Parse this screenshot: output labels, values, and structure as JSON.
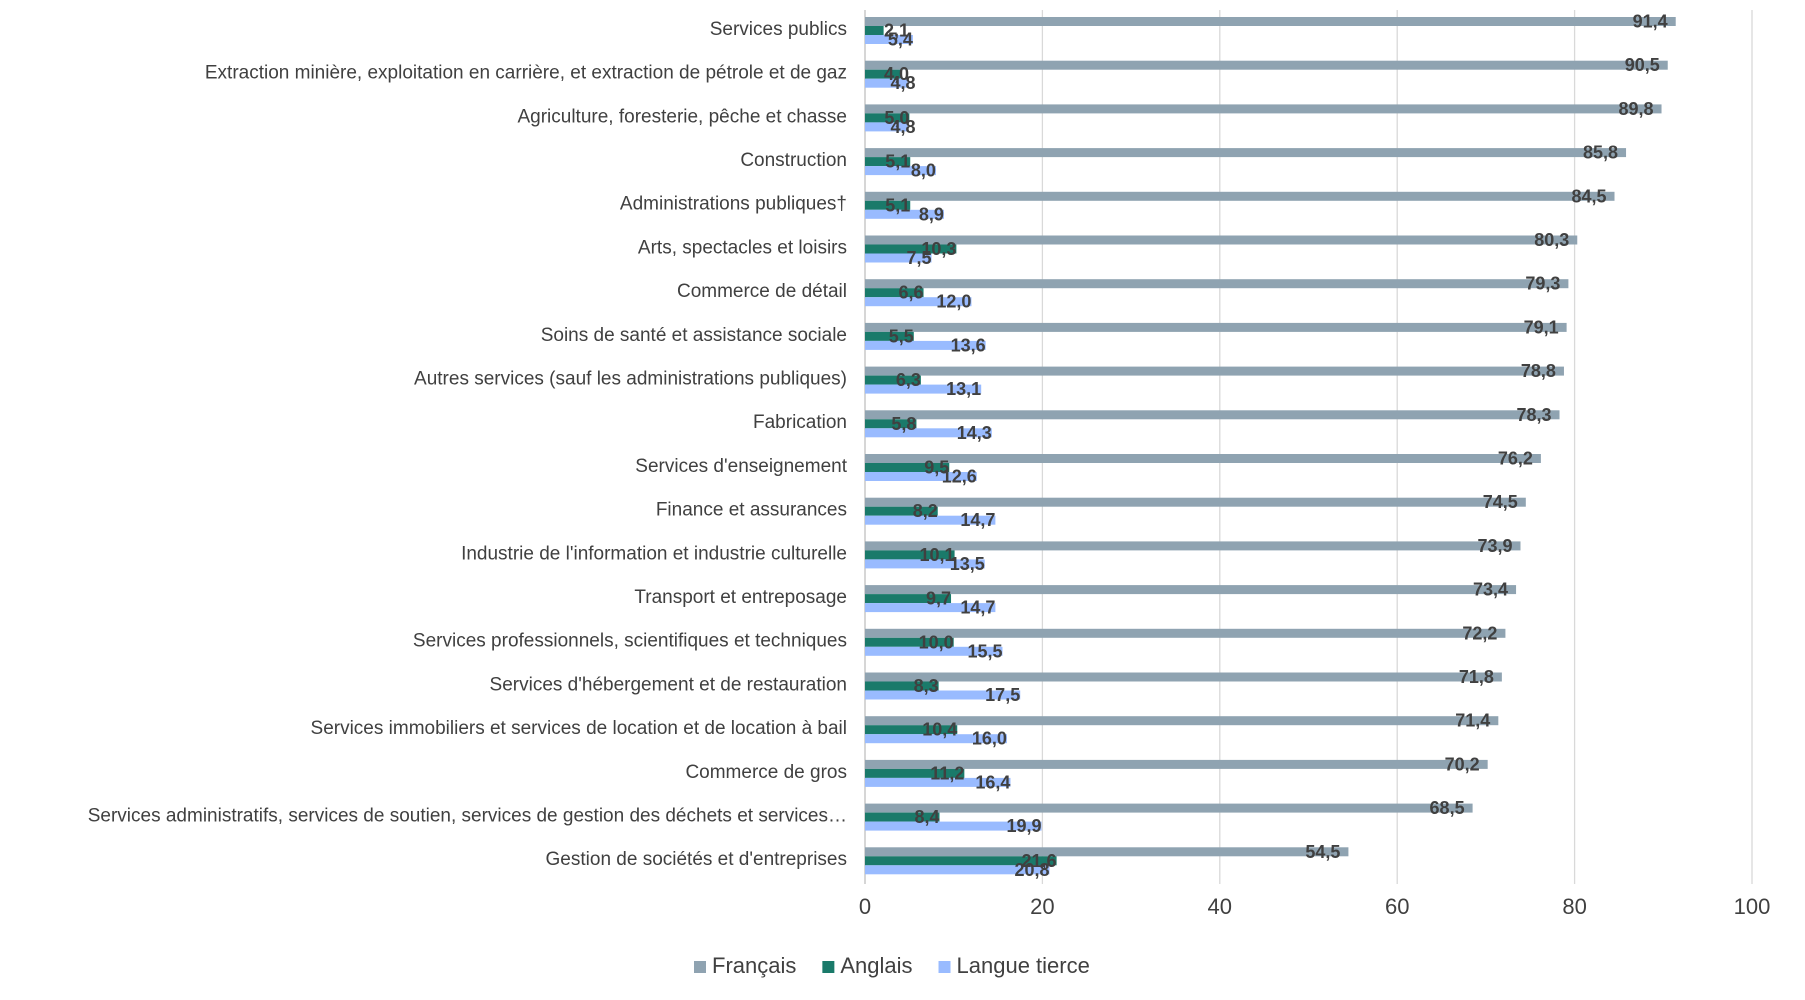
{
  "chart_data": {
    "type": "bar",
    "orientation": "horizontal",
    "categories": [
      "Services publics",
      "Extraction minière, exploitation en carrière, et extraction de pétrole et de gaz",
      "Agriculture, foresterie, pêche et chasse",
      "Construction",
      "Administrations publiques†",
      "Arts, spectacles et loisirs",
      "Commerce de détail",
      "Soins de santé et assistance sociale",
      "Autres services (sauf les administrations publiques)",
      "Fabrication",
      "Services d'enseignement",
      "Finance et assurances",
      "Industrie de l'information et industrie culturelle",
      "Transport et entreposage",
      "Services professionnels, scientifiques et techniques",
      "Services d'hébergement et de restauration",
      "Services immobiliers et services de location et de location à bail",
      "Commerce de gros",
      "Services administratifs, services de soutien, services de gestion des déchets et services…",
      "Gestion de sociétés et d'entreprises"
    ],
    "series": [
      {
        "name": "Français",
        "color": "#8fa3b1",
        "values": [
          91.4,
          90.5,
          89.8,
          85.8,
          84.5,
          80.3,
          79.3,
          79.1,
          78.8,
          78.3,
          76.2,
          74.5,
          73.9,
          73.4,
          72.2,
          71.8,
          71.4,
          70.2,
          68.5,
          54.5
        ],
        "labels": [
          "91,4",
          "90,5",
          "89,8",
          "85,8",
          "84,5",
          "80,3",
          "79,3",
          "79,1",
          "78,8",
          "78,3",
          "76,2",
          "74,5",
          "73,9",
          "73,4",
          "72,2",
          "71,8",
          "71,4",
          "70,2",
          "68,5",
          "54,5"
        ]
      },
      {
        "name": "Anglais",
        "color": "#1a7a6a",
        "values": [
          2.1,
          4.0,
          5.0,
          5.1,
          5.1,
          10.3,
          6.6,
          5.5,
          6.3,
          5.8,
          9.5,
          8.2,
          10.1,
          9.7,
          10.0,
          8.3,
          10.4,
          11.2,
          8.4,
          21.6
        ],
        "labels": [
          "2,1",
          "4,0",
          "5,0",
          "5,1",
          "5,1",
          "10,3",
          "6,6",
          "5,5",
          "6,3",
          "5,8",
          "9,5",
          "8,2",
          "10,1",
          "9,7",
          "10,0",
          "8,3",
          "10,4",
          "11,2",
          "8,4",
          "21,6"
        ]
      },
      {
        "name": "Langue tierce",
        "color": "#99bbff",
        "values": [
          5.4,
          4.8,
          4.8,
          8.0,
          8.9,
          7.5,
          12.0,
          13.6,
          13.1,
          14.3,
          12.6,
          14.7,
          13.5,
          14.7,
          15.5,
          17.5,
          16.0,
          16.4,
          19.9,
          20.8
        ],
        "labels": [
          "5,4",
          "4,8",
          "4,8",
          "8,0",
          "8,9",
          "7,5",
          "12,0",
          "13,6",
          "13,1",
          "14,3",
          "12,6",
          "14,7",
          "13,5",
          "14,7",
          "15,5",
          "17,5",
          "16,0",
          "16,4",
          "19,9",
          "20,8"
        ]
      }
    ],
    "xlim": [
      0,
      100
    ],
    "xticks": [
      "0",
      "20",
      "40",
      "60",
      "80",
      "100"
    ],
    "grid": true,
    "legend_position": "bottom",
    "gridline_color": "#d9d9d9",
    "text_color": "#404040"
  }
}
